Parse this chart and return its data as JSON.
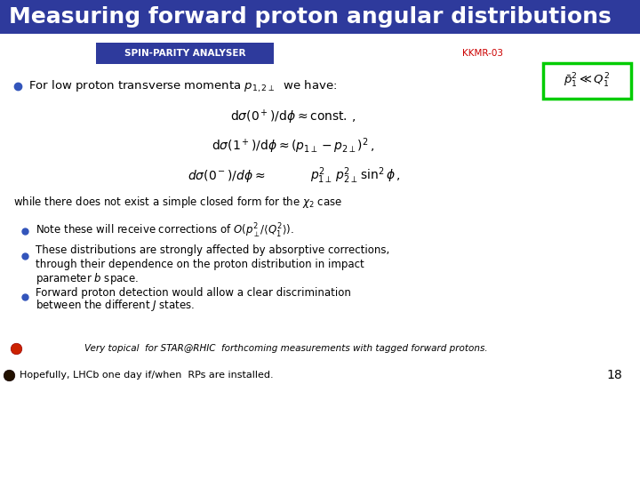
{
  "title": "Measuring forward proton angular distributions",
  "title_bg": "#2E3A9C",
  "title_color": "#FFFFFF",
  "spin_parity_label": "SPIN-PARITY ANALYSER",
  "spin_parity_bg": "#2E3A9C",
  "spin_parity_color": "#FFFFFF",
  "kkmr_label": "KKMR-03",
  "kkmr_color": "#CC0000",
  "box_border": "#00CC00",
  "bullet_color_blue": "#3355BB",
  "bullet_color_red": "#CC2200",
  "slide_number": "18",
  "background_color": "#FFFFFF",
  "footer1": "Very topical  for STAR@RHIC  forthcoming measurements with tagged forward protons.",
  "footer2": "Hopefully, LHCb one day if/when  RPs are installed."
}
